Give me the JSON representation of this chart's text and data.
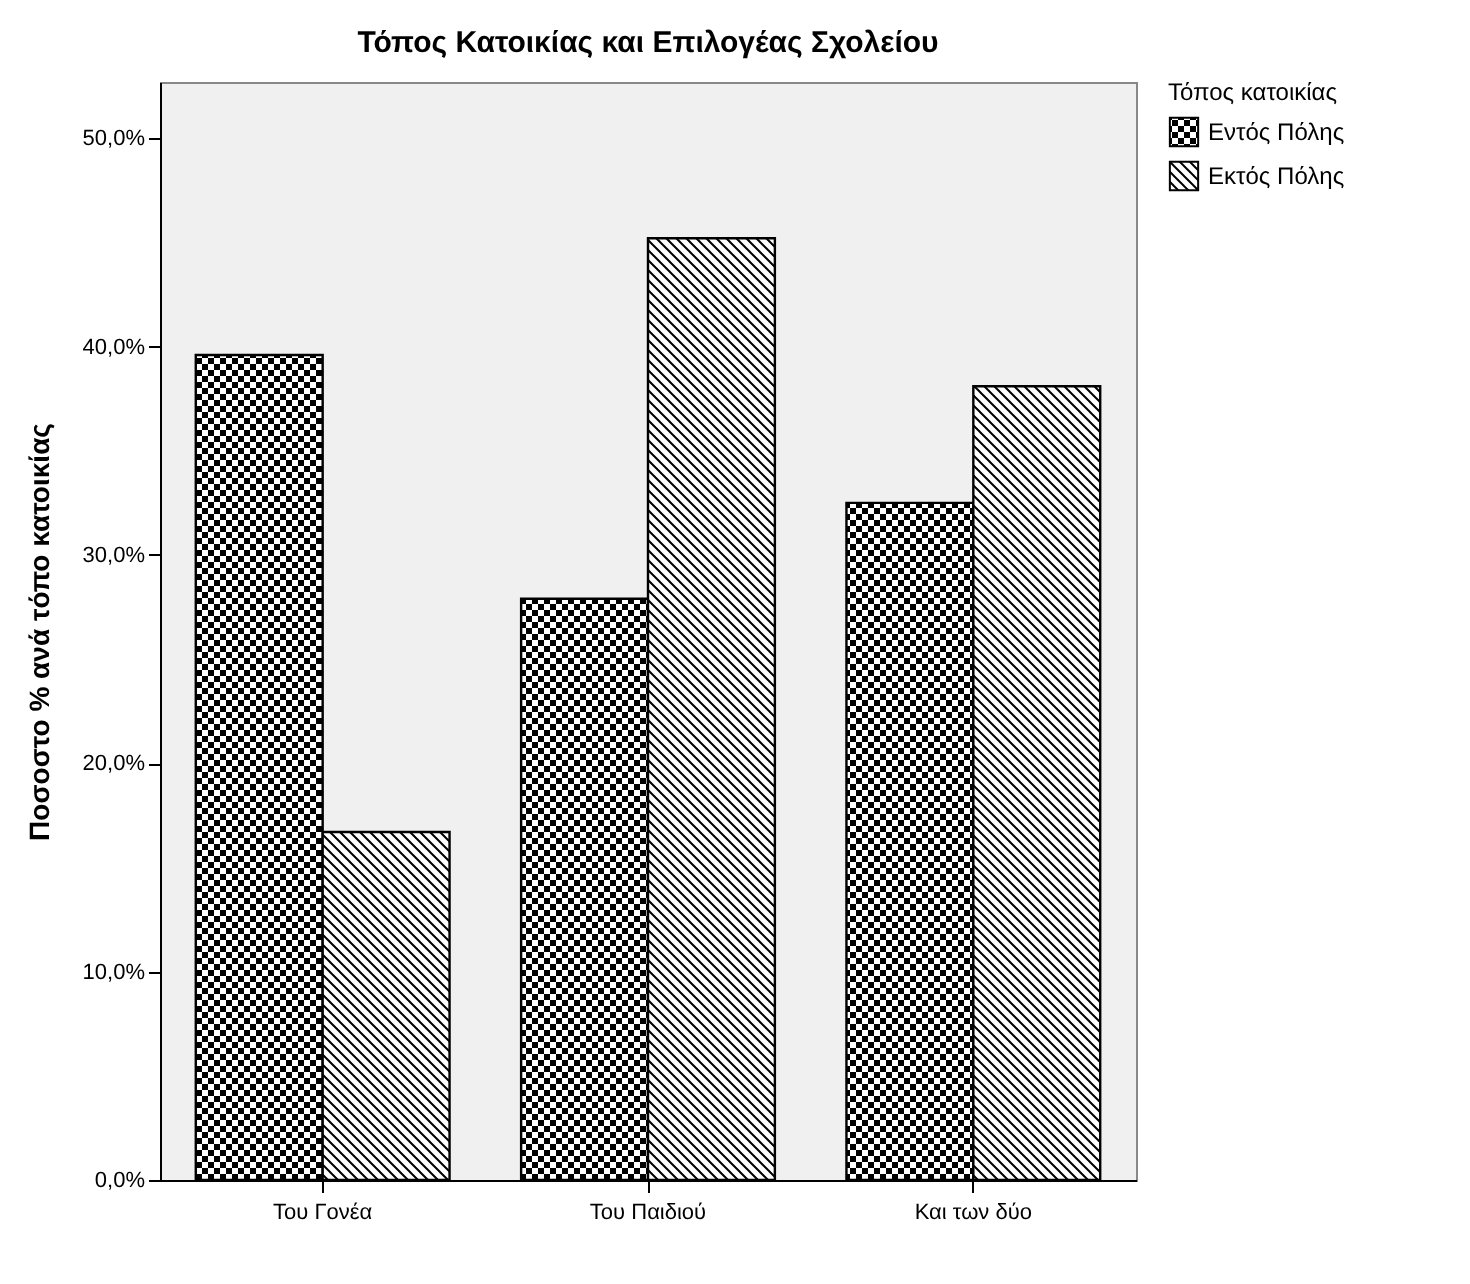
{
  "chart_data": {
    "type": "bar",
    "title": "Τόπος Κατοικίας και Επιλογέας Σχολείου",
    "ylabel": "Ποσοστο % ανά τόπο κατοικίας",
    "legend_title": "Τόπος κατοικίας",
    "legend": "top right",
    "categories": [
      "Του Γονέα",
      "Του Παιδιού",
      "Και των δύο"
    ],
    "series": [
      {
        "name": "Εντός Πόλης",
        "color": "#000000",
        "values": [
          39.6,
          27.9,
          32.5
        ]
      },
      {
        "name": "Εκτός Πόλης",
        "color": "#000000",
        "values": [
          16.7,
          45.2,
          38.1
        ]
      }
    ],
    "ylim": [
      0,
      52.7
    ],
    "yticks": [
      {
        "value": 0,
        "label": "0,0%"
      },
      {
        "value": 10,
        "label": "10,0%"
      },
      {
        "value": 20,
        "label": "20,0%"
      },
      {
        "value": 30,
        "label": "30,0%"
      },
      {
        "value": 40,
        "label": "40,0%"
      },
      {
        "value": 50,
        "label": "50,0%"
      }
    ],
    "grid": false
  }
}
